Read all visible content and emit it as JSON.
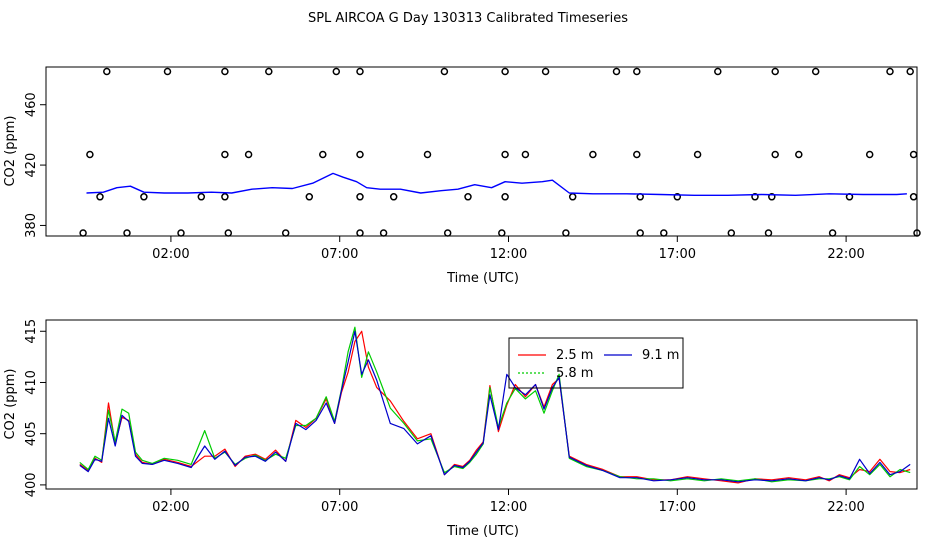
{
  "title": "SPL AIRCOA G  Day 130313  Calibrated Timeseries",
  "chart_data": [
    {
      "type": "line",
      "xlabel": "Time (UTC)",
      "ylabel": "CO2 (ppm)",
      "xlim": [
        -1.7,
        24.1
      ],
      "ylim": [
        373,
        485
      ],
      "xticks": [
        2,
        7,
        12,
        17,
        22
      ],
      "xtick_labels": [
        "02:00",
        "07:00",
        "12:00",
        "17:00",
        "22:00"
      ],
      "yticks": [
        380,
        420,
        460
      ],
      "series": [
        {
          "name": "CO2",
          "color": "#0000ff",
          "x": [
            -0.5,
            0,
            0.4,
            0.8,
            1.2,
            1.8,
            2.5,
            3.2,
            3.8,
            4.4,
            5,
            5.6,
            6.2,
            6.8,
            7.1,
            7.5,
            7.8,
            8.2,
            8.8,
            9.4,
            10,
            10.5,
            11,
            11.5,
            11.9,
            12.4,
            13,
            13.3,
            13.8,
            14.5,
            15.5,
            16.5,
            17.5,
            18.5,
            19.5,
            20.5,
            21.5,
            22.5,
            23.5,
            23.8
          ],
          "y": [
            401.5,
            402,
            405,
            406,
            402,
            401.5,
            401.5,
            402,
            401.5,
            404,
            405,
            404.5,
            408,
            414.5,
            412,
            409,
            405,
            404,
            404,
            401.5,
            403,
            404,
            407,
            405,
            409,
            408,
            409,
            410,
            401.5,
            401,
            401,
            400.5,
            400,
            400,
            400.5,
            400,
            401,
            400.5,
            400.5,
            401
          ]
        }
      ],
      "markers": {
        "symbol": "open-circle",
        "top_row_y": 482,
        "top_row_x": [
          0.1,
          1.9,
          3.6,
          4.9,
          6.9,
          7.6,
          10.1,
          11.9,
          13.1,
          15.2,
          15.8,
          18.2,
          19.9,
          21.1,
          23.3,
          23.9
        ],
        "upper_mid_y": 427,
        "upper_mid_x": [
          -0.4,
          3.6,
          4.3,
          6.5,
          7.6,
          9.6,
          11.9,
          12.5,
          14.5,
          15.8,
          17.6,
          19.9,
          20.6,
          22.7,
          24.0
        ],
        "lower_mid_y": 399,
        "lower_mid_x": [
          -0.1,
          1.2,
          2.9,
          3.6,
          6.1,
          7.6,
          8.6,
          10.8,
          11.9,
          13.9,
          15.9,
          17.0,
          19.3,
          19.8,
          22.1,
          24.0
        ],
        "bottom_row_y": 375,
        "bottom_row_x": [
          -0.6,
          0.7,
          2.3,
          3.7,
          5.4,
          7.6,
          8.3,
          10.2,
          11.8,
          13.7,
          15.9,
          16.6,
          18.6,
          19.7,
          21.6,
          24.1
        ]
      }
    },
    {
      "type": "line",
      "xlabel": "Time (UTC)",
      "ylabel": "CO2 (ppm)",
      "xlim": [
        -1.7,
        24.1
      ],
      "ylim": [
        399.6,
        416.1
      ],
      "xticks": [
        2,
        7,
        12,
        17,
        22
      ],
      "xtick_labels": [
        "02:00",
        "07:00",
        "12:00",
        "17:00",
        "22:00"
      ],
      "yticks": [
        400,
        405,
        410,
        415
      ],
      "legend": {
        "position": "top-center"
      },
      "series": [
        {
          "name": "2.5 m",
          "color": "#ff0000",
          "x": [
            -0.7,
            -0.45,
            -0.25,
            -0.05,
            0.15,
            0.35,
            0.55,
            0.75,
            0.95,
            1.15,
            1.45,
            1.8,
            2.2,
            2.6,
            3.0,
            3.3,
            3.6,
            3.9,
            4.2,
            4.5,
            4.8,
            5.1,
            5.4,
            5.7,
            6.0,
            6.3,
            6.6,
            6.85,
            7.05,
            7.25,
            7.45,
            7.65,
            7.85,
            8.1,
            8.5,
            8.9,
            9.3,
            9.7,
            10.1,
            10.4,
            10.65,
            10.85,
            11.05,
            11.25,
            11.45,
            11.7,
            11.95,
            12.2,
            12.5,
            12.8,
            13.05,
            13.3,
            13.5,
            13.8,
            14.3,
            14.8,
            15.3,
            15.8,
            16.3,
            16.8,
            17.3,
            17.8,
            18.3,
            18.8,
            19.3,
            19.8,
            20.3,
            20.8,
            21.2,
            21.5,
            21.8,
            22.1,
            22.4,
            22.7,
            23.0,
            23.3,
            23.6,
            23.9
          ],
          "y": [
            402.0,
            401.4,
            402.6,
            402.2,
            408.0,
            404.0,
            406.6,
            406.3,
            403.0,
            402.2,
            402.0,
            402.5,
            402.2,
            401.8,
            402.8,
            402.8,
            403.5,
            401.8,
            402.8,
            403.0,
            402.5,
            403.4,
            402.3,
            406.3,
            405.6,
            406.5,
            408.4,
            406.0,
            409.0,
            411.0,
            414.0,
            415.0,
            411.5,
            409.5,
            408.2,
            406.2,
            404.5,
            405.0,
            401.0,
            402.0,
            401.8,
            402.4,
            403.4,
            404.2,
            409.7,
            405.2,
            407.8,
            409.8,
            408.6,
            409.8,
            407.6,
            409.8,
            410.4,
            402.8,
            402.0,
            401.5,
            400.8,
            400.8,
            400.5,
            400.5,
            400.8,
            400.6,
            400.4,
            400.2,
            400.6,
            400.5,
            400.7,
            400.5,
            400.8,
            400.4,
            401.0,
            400.7,
            401.5,
            401.3,
            402.5,
            401.3,
            401.2,
            401.5
          ]
        },
        {
          "name": "5.8 m",
          "color": "#00cc00",
          "x": [
            -0.7,
            -0.45,
            -0.25,
            -0.05,
            0.15,
            0.35,
            0.55,
            0.75,
            0.95,
            1.15,
            1.45,
            1.8,
            2.2,
            2.6,
            3.0,
            3.3,
            3.6,
            3.9,
            4.2,
            4.5,
            4.8,
            5.1,
            5.4,
            5.7,
            6.0,
            6.3,
            6.6,
            6.85,
            7.05,
            7.25,
            7.45,
            7.65,
            7.85,
            8.1,
            8.5,
            8.9,
            9.3,
            9.7,
            10.1,
            10.4,
            10.65,
            10.85,
            11.05,
            11.25,
            11.45,
            11.7,
            11.95,
            12.2,
            12.5,
            12.8,
            13.05,
            13.3,
            13.5,
            13.8,
            14.3,
            14.8,
            15.3,
            15.8,
            16.3,
            16.8,
            17.3,
            17.8,
            18.3,
            18.8,
            19.3,
            19.8,
            20.3,
            20.8,
            21.2,
            21.5,
            21.8,
            22.1,
            22.4,
            22.7,
            23.0,
            23.3,
            23.6,
            23.9
          ],
          "y": [
            402.2,
            401.5,
            402.8,
            402.4,
            407.3,
            404.2,
            407.4,
            407.0,
            403.2,
            402.4,
            402.1,
            402.6,
            402.4,
            402.0,
            405.3,
            402.6,
            403.2,
            402.0,
            402.6,
            402.9,
            402.4,
            403.0,
            402.6,
            405.8,
            405.8,
            406.5,
            408.6,
            406.2,
            409.3,
            413.0,
            415.4,
            410.5,
            413.0,
            411.0,
            407.5,
            406.0,
            404.3,
            404.5,
            401.2,
            401.8,
            401.6,
            402.2,
            403.0,
            404.0,
            409.5,
            405.6,
            408.0,
            409.4,
            408.4,
            409.2,
            407.0,
            409.2,
            410.8,
            402.6,
            401.8,
            401.4,
            400.8,
            400.6,
            400.6,
            400.4,
            400.6,
            400.4,
            400.6,
            400.4,
            400.6,
            400.3,
            400.5,
            400.4,
            400.6,
            400.6,
            400.8,
            400.5,
            401.8,
            401.0,
            402.0,
            400.8,
            401.5,
            401.2
          ]
        },
        {
          "name": "9.1 m",
          "color": "#0000cc",
          "x": [
            -0.7,
            -0.45,
            -0.25,
            -0.05,
            0.15,
            0.35,
            0.55,
            0.75,
            0.95,
            1.15,
            1.45,
            1.8,
            2.2,
            2.6,
            3.0,
            3.3,
            3.6,
            3.9,
            4.2,
            4.5,
            4.8,
            5.1,
            5.4,
            5.7,
            6.0,
            6.3,
            6.6,
            6.85,
            7.05,
            7.25,
            7.45,
            7.65,
            7.85,
            8.1,
            8.5,
            8.9,
            9.3,
            9.7,
            10.1,
            10.4,
            10.65,
            10.85,
            11.05,
            11.25,
            11.45,
            11.7,
            11.95,
            12.2,
            12.5,
            12.8,
            13.05,
            13.3,
            13.5,
            13.8,
            14.3,
            14.8,
            15.3,
            15.8,
            16.3,
            16.8,
            17.3,
            17.8,
            18.3,
            18.8,
            19.3,
            19.8,
            20.3,
            20.8,
            21.2,
            21.5,
            21.8,
            22.1,
            22.4,
            22.7,
            23.0,
            23.3,
            23.6,
            23.9
          ],
          "y": [
            401.9,
            401.3,
            402.5,
            402.3,
            406.5,
            403.8,
            406.8,
            406.2,
            402.8,
            402.1,
            402.0,
            402.4,
            402.1,
            401.7,
            403.8,
            402.5,
            403.3,
            401.9,
            402.7,
            402.8,
            402.3,
            403.2,
            402.3,
            406.0,
            405.4,
            406.3,
            408.0,
            406.0,
            409.2,
            412.0,
            415.0,
            410.8,
            412.2,
            410.2,
            406.0,
            405.5,
            404.0,
            404.8,
            401.0,
            401.9,
            401.7,
            402.3,
            403.2,
            404.1,
            408.8,
            405.4,
            410.8,
            409.5,
            408.8,
            409.8,
            407.4,
            409.5,
            410.5,
            402.7,
            401.9,
            401.4,
            400.7,
            400.7,
            400.4,
            400.5,
            400.7,
            400.5,
            400.5,
            400.3,
            400.5,
            400.4,
            400.6,
            400.4,
            400.7,
            400.5,
            400.9,
            400.6,
            402.5,
            401.1,
            402.2,
            401.0,
            401.3,
            402.0
          ]
        }
      ]
    }
  ]
}
